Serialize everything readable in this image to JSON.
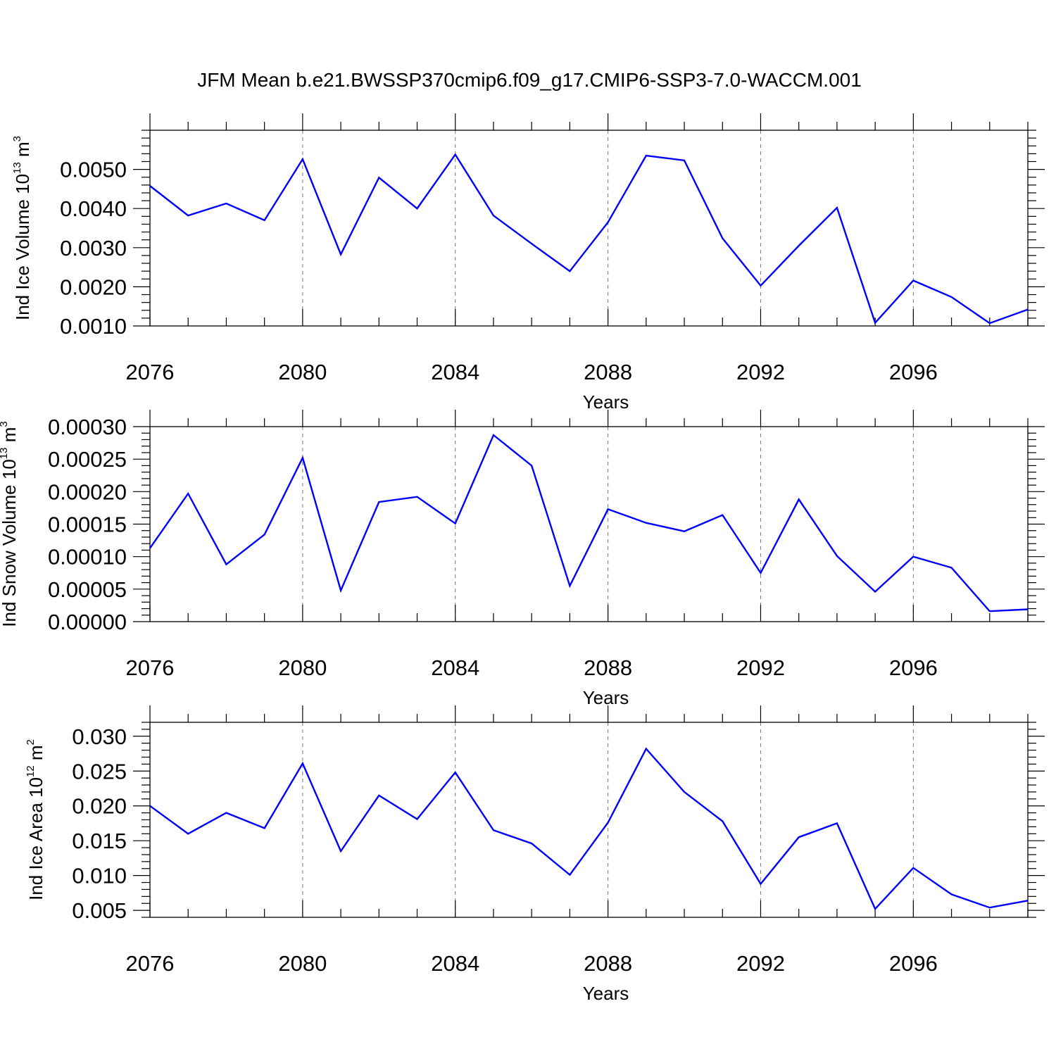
{
  "title": "JFM Mean b.e21.BWSSP370cmip6.f09_g17.CMIP6-SSP3-7.0-WACCM.001",
  "colors": {
    "line": "#0000ff",
    "grid": "#777777"
  },
  "chart_data": [
    {
      "type": "line",
      "xlabel": "Years",
      "ylabel": {
        "main": "Ind Ice Volume 10",
        "sup": "13",
        "unit": " m",
        "unit_sup": "3"
      },
      "xlim": [
        2076,
        2099
      ],
      "ylim": [
        0.001,
        0.006
      ],
      "xticks": [
        "2076",
        "2080",
        "2084",
        "2088",
        "2092",
        "2096"
      ],
      "yticks": [
        "0.0010",
        "0.0020",
        "0.0030",
        "0.0040",
        "0.0050"
      ],
      "ytick_values": [
        0.001,
        0.002,
        0.003,
        0.004,
        0.005
      ],
      "grid": "x-dashed",
      "series": [
        {
          "x": [
            2076,
            2077,
            2078,
            2079,
            2080,
            2081,
            2082,
            2083,
            2084,
            2085,
            2086,
            2087,
            2088,
            2089,
            2090,
            2091,
            2092,
            2093,
            2094,
            2095,
            2096,
            2097,
            2098,
            2099
          ],
          "values": [
            0.00458,
            0.00382,
            0.00413,
            0.0037,
            0.00526,
            0.00283,
            0.00479,
            0.004,
            0.00538,
            0.00382,
            0.0031,
            0.0024,
            0.00365,
            0.00535,
            0.00523,
            0.00324,
            0.00203,
            0.00305,
            0.00402,
            0.00108,
            0.00216,
            0.00174,
            0.00107,
            0.00142
          ]
        }
      ]
    },
    {
      "type": "line",
      "xlabel": "Years",
      "ylabel": {
        "main": "Ind Snow Volume 10",
        "sup": "13",
        "unit": " m",
        "unit_sup": "3"
      },
      "xlim": [
        2076,
        2099
      ],
      "ylim": [
        0.0,
        0.0003
      ],
      "xticks": [
        "2076",
        "2080",
        "2084",
        "2088",
        "2092",
        "2096"
      ],
      "yticks": [
        "0.00000",
        "0.00005",
        "0.00010",
        "0.00015",
        "0.00020",
        "0.00025",
        "0.00030"
      ],
      "ytick_values": [
        0.0,
        5e-05,
        0.0001,
        0.00015,
        0.0002,
        0.00025,
        0.0003
      ],
      "grid": "x-dashed",
      "series": [
        {
          "x": [
            2076,
            2077,
            2078,
            2079,
            2080,
            2081,
            2082,
            2083,
            2084,
            2085,
            2086,
            2087,
            2088,
            2089,
            2090,
            2091,
            2092,
            2093,
            2094,
            2095,
            2096,
            2097,
            2098,
            2099
          ],
          "values": [
            0.000113,
            0.000197,
            8.8e-05,
            0.000134,
            0.000252,
            4.8e-05,
            0.000184,
            0.000192,
            0.000151,
            0.000287,
            0.00024,
            5.5e-05,
            0.000173,
            0.000152,
            0.000139,
            0.000164,
            7.5e-05,
            0.000188,
            0.000101,
            4.6e-05,
            0.0001,
            8.3e-05,
            1.6e-05,
            1.9e-05
          ]
        }
      ]
    },
    {
      "type": "line",
      "xlabel": "Years",
      "ylabel": {
        "main": "Ind Ice Area 10",
        "sup": "12",
        "unit": " m",
        "unit_sup": "2"
      },
      "xlim": [
        2076,
        2099
      ],
      "ylim": [
        0.004,
        0.032
      ],
      "xticks": [
        "2076",
        "2080",
        "2084",
        "2088",
        "2092",
        "2096"
      ],
      "yticks": [
        "0.005",
        "0.010",
        "0.015",
        "0.020",
        "0.025",
        "0.030"
      ],
      "ytick_values": [
        0.005,
        0.01,
        0.015,
        0.02,
        0.025,
        0.03
      ],
      "grid": "x-dashed",
      "series": [
        {
          "x": [
            2076,
            2077,
            2078,
            2079,
            2080,
            2081,
            2082,
            2083,
            2084,
            2085,
            2086,
            2087,
            2088,
            2089,
            2090,
            2091,
            2092,
            2093,
            2094,
            2095,
            2096,
            2097,
            2098,
            2099
          ],
          "values": [
            0.02,
            0.016,
            0.019,
            0.0168,
            0.0261,
            0.0135,
            0.0215,
            0.0181,
            0.0248,
            0.0165,
            0.0146,
            0.0101,
            0.0176,
            0.0282,
            0.022,
            0.0178,
            0.0088,
            0.0155,
            0.0175,
            0.0052,
            0.0111,
            0.0073,
            0.0054,
            0.0064
          ]
        }
      ]
    }
  ]
}
